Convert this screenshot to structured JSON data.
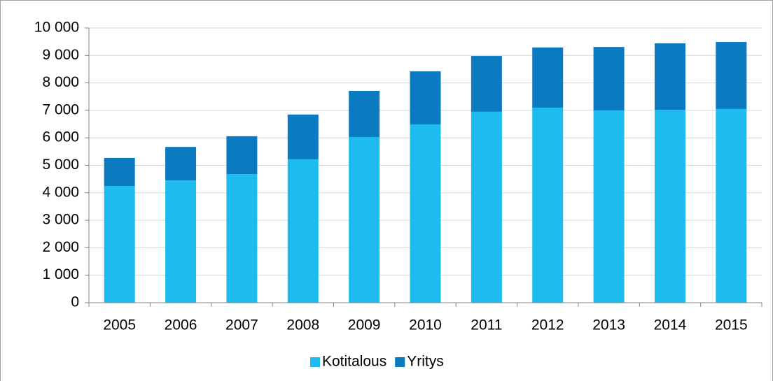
{
  "chart_data": {
    "type": "stacked_bar",
    "categories": [
      "2005",
      "2006",
      "2007",
      "2008",
      "2009",
      "2010",
      "2011",
      "2012",
      "2013",
      "2014",
      "2015"
    ],
    "series": [
      {
        "name": "Kotitalous",
        "color": "#1ebbee",
        "values": [
          4250,
          4450,
          4680,
          5220,
          6030,
          6490,
          6950,
          7100,
          7000,
          7020,
          7050
        ]
      },
      {
        "name": "Yritys",
        "color": "#0a7bc1",
        "values": [
          1020,
          1220,
          1380,
          1630,
          1680,
          1930,
          2030,
          2190,
          2310,
          2420,
          2440
        ]
      }
    ],
    "ylim": [
      0,
      10000
    ],
    "yticks": [
      0,
      {
        "value": 1000,
        "label": "1 000"
      },
      {
        "value": 2000,
        "label": "2 000"
      },
      {
        "value": 3000,
        "label": "3 000"
      },
      {
        "value": 4000,
        "label": "4 000"
      },
      {
        "value": 5000,
        "label": "5 000"
      },
      {
        "value": 6000,
        "label": "6 000"
      },
      {
        "value": 7000,
        "label": "7 000"
      },
      {
        "value": 8000,
        "label": "8 000"
      },
      {
        "value": 9000,
        "label": "9 000"
      },
      {
        "value": 10000,
        "label": "10 000"
      }
    ],
    "grid": true,
    "legend": "bottom"
  }
}
